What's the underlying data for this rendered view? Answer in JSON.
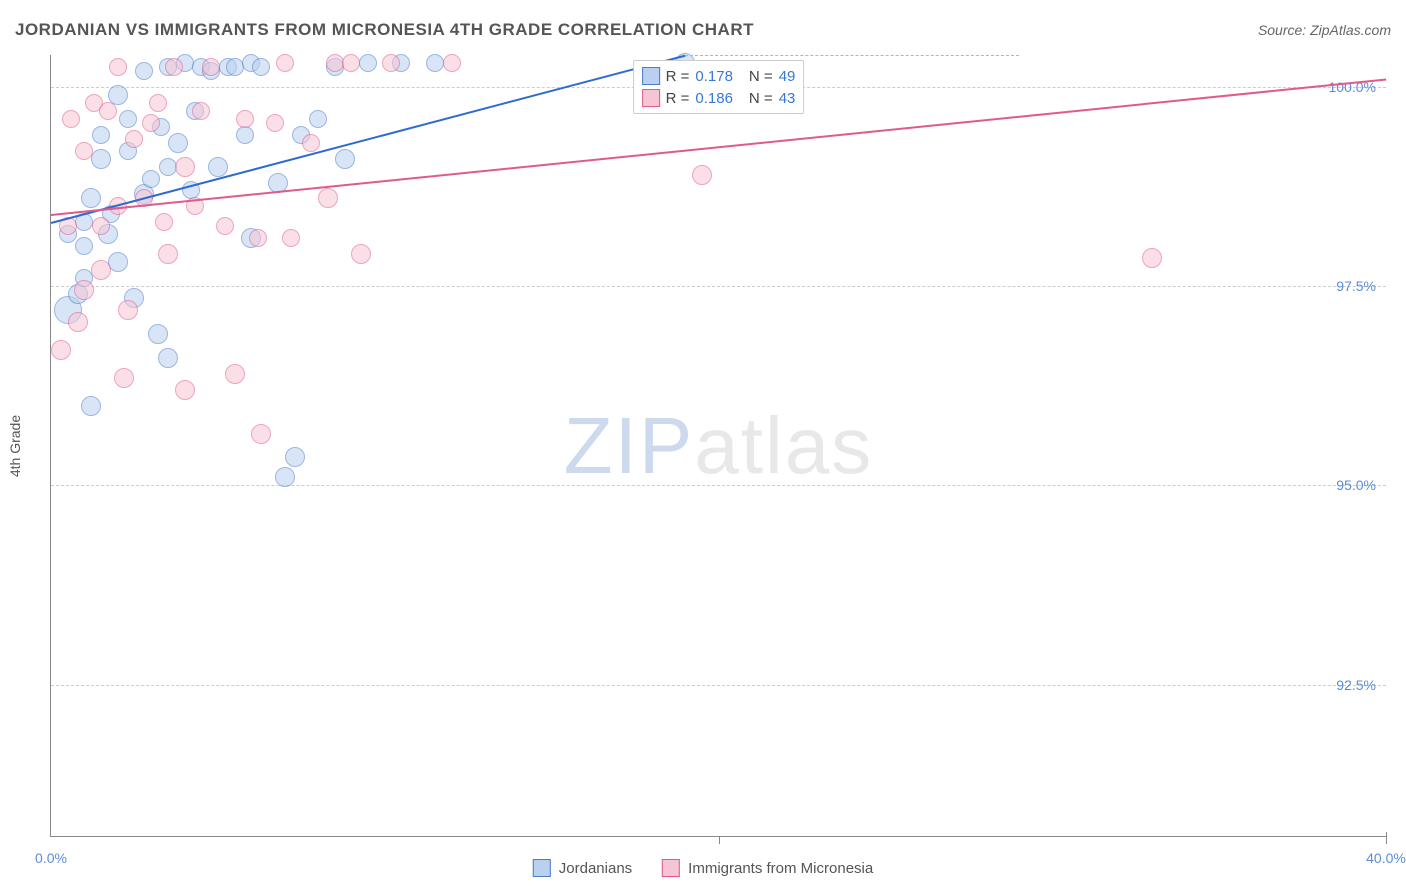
{
  "header": {
    "title": "JORDANIAN VS IMMIGRANTS FROM MICRONESIA 4TH GRADE CORRELATION CHART",
    "source": "Source: ZipAtlas.com"
  },
  "axes": {
    "y_label": "4th Grade",
    "x_min": 0.0,
    "x_max": 40.0,
    "y_min": 90.6,
    "y_max": 100.4,
    "y_ticks": [
      92.5,
      95.0,
      97.5,
      100.0
    ],
    "y_tick_labels": [
      "92.5%",
      "95.0%",
      "97.5%",
      "100.0%"
    ],
    "x_ticks": [
      0.0,
      40.0
    ],
    "x_tick_labels": [
      "0.0%",
      "40.0%"
    ],
    "x_minor_tick": 20.0,
    "grid_color": "#cccccc",
    "axis_color": "#888888",
    "tick_label_color": "#5b8dd6",
    "tick_fontsize": 14
  },
  "series": [
    {
      "name": "Jordanians",
      "label": "Jordanians",
      "marker_fill": "#b9d0ef",
      "marker_stroke": "#4a7bc8",
      "marker_fill_opacity": 0.55,
      "marker_radius": 10,
      "trend_color": "#2e6bd0",
      "trend_width": 2,
      "trend_dash_color": "#9ab9e5",
      "R": 0.178,
      "N": 49,
      "trend_start": {
        "x": 0.0,
        "y": 98.3
      },
      "trend_end_solid": {
        "x": 19.0,
        "y": 100.4
      },
      "trend_end_dash": {
        "x": 29.0,
        "y": 100.4
      },
      "points": [
        {
          "x": 0.5,
          "y": 97.2,
          "r": 14
        },
        {
          "x": 0.8,
          "y": 97.4,
          "r": 10
        },
        {
          "x": 1.0,
          "y": 97.6,
          "r": 9
        },
        {
          "x": 1.0,
          "y": 98.0,
          "r": 9
        },
        {
          "x": 0.5,
          "y": 98.15,
          "r": 9
        },
        {
          "x": 1.0,
          "y": 98.3,
          "r": 9
        },
        {
          "x": 1.2,
          "y": 98.6,
          "r": 10
        },
        {
          "x": 1.2,
          "y": 96.0,
          "r": 10
        },
        {
          "x": 1.5,
          "y": 99.1,
          "r": 10
        },
        {
          "x": 1.5,
          "y": 99.4,
          "r": 9
        },
        {
          "x": 1.7,
          "y": 98.15,
          "r": 10
        },
        {
          "x": 1.8,
          "y": 98.4,
          "r": 9
        },
        {
          "x": 2.0,
          "y": 97.8,
          "r": 10
        },
        {
          "x": 2.0,
          "y": 99.9,
          "r": 10
        },
        {
          "x": 2.3,
          "y": 99.6,
          "r": 9
        },
        {
          "x": 2.3,
          "y": 99.2,
          "r": 9
        },
        {
          "x": 2.5,
          "y": 97.35,
          "r": 10
        },
        {
          "x": 2.8,
          "y": 98.65,
          "r": 10
        },
        {
          "x": 2.8,
          "y": 100.2,
          "r": 9
        },
        {
          "x": 3.0,
          "y": 98.85,
          "r": 9
        },
        {
          "x": 3.2,
          "y": 96.9,
          "r": 10
        },
        {
          "x": 3.3,
          "y": 99.5,
          "r": 9
        },
        {
          "x": 3.5,
          "y": 99.0,
          "r": 9
        },
        {
          "x": 3.5,
          "y": 100.25,
          "r": 9
        },
        {
          "x": 3.5,
          "y": 96.6,
          "r": 10
        },
        {
          "x": 3.8,
          "y": 99.3,
          "r": 10
        },
        {
          "x": 4.0,
          "y": 100.3,
          "r": 9
        },
        {
          "x": 4.2,
          "y": 98.7,
          "r": 9
        },
        {
          "x": 4.3,
          "y": 99.7,
          "r": 9
        },
        {
          "x": 4.5,
          "y": 100.25,
          "r": 9
        },
        {
          "x": 4.8,
          "y": 100.2,
          "r": 9
        },
        {
          "x": 5.0,
          "y": 99.0,
          "r": 10
        },
        {
          "x": 5.3,
          "y": 100.25,
          "r": 9
        },
        {
          "x": 5.5,
          "y": 100.25,
          "r": 9
        },
        {
          "x": 5.8,
          "y": 99.4,
          "r": 9
        },
        {
          "x": 6.0,
          "y": 100.3,
          "r": 9
        },
        {
          "x": 6.0,
          "y": 98.1,
          "r": 10
        },
        {
          "x": 6.3,
          "y": 100.25,
          "r": 9
        },
        {
          "x": 6.8,
          "y": 98.8,
          "r": 10
        },
        {
          "x": 7.0,
          "y": 95.1,
          "r": 10
        },
        {
          "x": 7.3,
          "y": 95.35,
          "r": 10
        },
        {
          "x": 7.5,
          "y": 99.4,
          "r": 9
        },
        {
          "x": 8.0,
          "y": 99.6,
          "r": 9
        },
        {
          "x": 8.5,
          "y": 100.25,
          "r": 9
        },
        {
          "x": 8.8,
          "y": 99.1,
          "r": 10
        },
        {
          "x": 9.5,
          "y": 100.3,
          "r": 9
        },
        {
          "x": 10.5,
          "y": 100.3,
          "r": 9
        },
        {
          "x": 11.5,
          "y": 100.3,
          "r": 9
        },
        {
          "x": 19.0,
          "y": 100.3,
          "r": 10
        }
      ]
    },
    {
      "name": "Immigrants from Micronesia",
      "label": "Immigrants from Micronesia",
      "marker_fill": "#f6c5d5",
      "marker_stroke": "#e05a8a",
      "marker_fill_opacity": 0.55,
      "marker_radius": 10,
      "trend_color": "#e05a8a",
      "trend_width": 2,
      "trend_dash_color": "#f0a9c0",
      "R": 0.186,
      "N": 43,
      "trend_start": {
        "x": 0.0,
        "y": 98.4
      },
      "trend_end_solid": {
        "x": 40.0,
        "y": 100.1
      },
      "trend_end_dash": {
        "x": 40.0,
        "y": 100.1
      },
      "points": [
        {
          "x": 0.3,
          "y": 96.7,
          "r": 10
        },
        {
          "x": 0.5,
          "y": 98.25,
          "r": 9
        },
        {
          "x": 0.6,
          "y": 99.6,
          "r": 9
        },
        {
          "x": 0.8,
          "y": 97.05,
          "r": 10
        },
        {
          "x": 1.0,
          "y": 99.2,
          "r": 9
        },
        {
          "x": 1.0,
          "y": 97.45,
          "r": 10
        },
        {
          "x": 1.3,
          "y": 99.8,
          "r": 9
        },
        {
          "x": 1.5,
          "y": 98.25,
          "r": 9
        },
        {
          "x": 1.5,
          "y": 97.7,
          "r": 10
        },
        {
          "x": 1.7,
          "y": 99.7,
          "r": 9
        },
        {
          "x": 2.0,
          "y": 98.5,
          "r": 9
        },
        {
          "x": 2.0,
          "y": 100.25,
          "r": 9
        },
        {
          "x": 2.2,
          "y": 96.35,
          "r": 10
        },
        {
          "x": 2.3,
          "y": 97.2,
          "r": 10
        },
        {
          "x": 2.5,
          "y": 99.35,
          "r": 9
        },
        {
          "x": 2.8,
          "y": 98.6,
          "r": 9
        },
        {
          "x": 3.0,
          "y": 99.55,
          "r": 9
        },
        {
          "x": 3.2,
          "y": 99.8,
          "r": 9
        },
        {
          "x": 3.4,
          "y": 98.3,
          "r": 9
        },
        {
          "x": 3.5,
          "y": 97.9,
          "r": 10
        },
        {
          "x": 3.7,
          "y": 100.25,
          "r": 9
        },
        {
          "x": 4.0,
          "y": 99.0,
          "r": 10
        },
        {
          "x": 4.0,
          "y": 96.2,
          "r": 10
        },
        {
          "x": 4.3,
          "y": 98.5,
          "r": 9
        },
        {
          "x": 4.5,
          "y": 99.7,
          "r": 9
        },
        {
          "x": 4.8,
          "y": 100.25,
          "r": 9
        },
        {
          "x": 5.2,
          "y": 98.25,
          "r": 9
        },
        {
          "x": 5.5,
          "y": 96.4,
          "r": 10
        },
        {
          "x": 5.8,
          "y": 99.6,
          "r": 9
        },
        {
          "x": 6.2,
          "y": 98.1,
          "r": 9
        },
        {
          "x": 6.3,
          "y": 95.65,
          "r": 10
        },
        {
          "x": 6.7,
          "y": 99.55,
          "r": 9
        },
        {
          "x": 7.0,
          "y": 100.3,
          "r": 9
        },
        {
          "x": 7.2,
          "y": 98.1,
          "r": 9
        },
        {
          "x": 7.8,
          "y": 99.3,
          "r": 9
        },
        {
          "x": 8.3,
          "y": 98.6,
          "r": 10
        },
        {
          "x": 8.5,
          "y": 100.3,
          "r": 9
        },
        {
          "x": 9.0,
          "y": 100.3,
          "r": 9
        },
        {
          "x": 9.3,
          "y": 97.9,
          "r": 10
        },
        {
          "x": 10.2,
          "y": 100.3,
          "r": 9
        },
        {
          "x": 12.0,
          "y": 100.3,
          "r": 9
        },
        {
          "x": 19.5,
          "y": 98.9,
          "r": 10
        },
        {
          "x": 33.0,
          "y": 97.85,
          "r": 10
        }
      ]
    }
  ],
  "legend_top": {
    "rows": [
      {
        "swatch_fill": "#b9d0ef",
        "swatch_stroke": "#4a7bc8",
        "R_label": "R =",
        "R_value": "0.178",
        "N_label": "N =",
        "N_value": "49"
      },
      {
        "swatch_fill": "#f6c5d5",
        "swatch_stroke": "#e05a8a",
        "R_label": "R =",
        "R_value": "0.186",
        "N_label": "N =",
        "N_value": "43"
      }
    ],
    "value_color": "#3878d6",
    "label_color": "#444"
  },
  "legend_bottom": {
    "items": [
      {
        "swatch_fill": "#b9d0ef",
        "swatch_stroke": "#4a7bc8",
        "label": "Jordanians"
      },
      {
        "swatch_fill": "#f6c5d5",
        "swatch_stroke": "#e05a8a",
        "label": "Immigrants from Micronesia"
      }
    ]
  },
  "watermark": {
    "text_a": "ZIP",
    "text_b": "atlas",
    "color_a": "#cdd9ed",
    "color_b": "#e8e8e8",
    "fontsize": 80
  }
}
